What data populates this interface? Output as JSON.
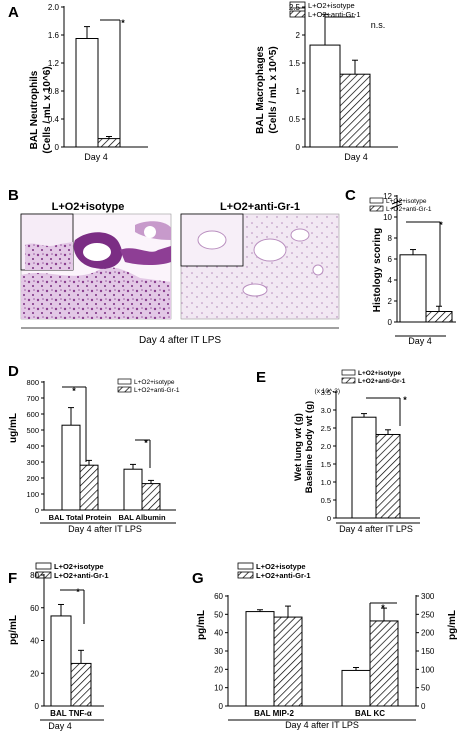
{
  "legend": {
    "isotype": "L+O2+isotype",
    "antigr1": "L+O2+anti-Gr-1"
  },
  "panelA": {
    "letter": "A",
    "left": {
      "ylabel1": "BAL Neutrophils",
      "ylabel2": "(Cells / mL x 10^6)",
      "xlabel": "Day 4",
      "sig": "*"
    },
    "right": {
      "ylabel1": "BAL Macrophages",
      "ylabel2": "(Cells / mL x 10^5)",
      "xlabel": "Day 4",
      "sig": "n.s."
    }
  },
  "panelB": {
    "letter": "B",
    "img1_label": "L+O2+isotype",
    "img2_label": "L+O2+anti-Gr-1",
    "caption": "Day 4 after IT LPS"
  },
  "panelC": {
    "letter": "C",
    "ylabel": "Histology scoring",
    "xlabel": "Day 4",
    "sig": "*"
  },
  "panelD": {
    "letter": "D",
    "ylabel": "ug/mL",
    "caption": "Day 4 after IT LPS",
    "sig": "*"
  },
  "panelE": {
    "letter": "E",
    "ylabel1": "Wet lung wt (g)",
    "ylabel2": "Baseline body wt (g)",
    "scale": "(x 10^-3)",
    "caption": "Day 4 after IT LPS",
    "sig": "*"
  },
  "panelF": {
    "letter": "F",
    "ylabel": "pg/mL",
    "xlabel": "Day 4",
    "sig": "*"
  },
  "panelG": {
    "letter": "G",
    "ylabel_left": "pg/mL",
    "ylabel_right": "pg/mL",
    "caption": "Day 4 after IT LPS",
    "sig": "*"
  },
  "chart_data": [
    {
      "panel": "A-left",
      "type": "bar",
      "categories": [
        "Day 4"
      ],
      "series": [
        {
          "name": "L+O2+isotype",
          "values": [
            1.55
          ],
          "error": [
            0.17
          ]
        },
        {
          "name": "L+O2+anti-Gr-1",
          "values": [
            0.12
          ],
          "error": [
            0.03
          ]
        }
      ],
      "ylim": [
        0,
        2.0
      ],
      "yticks": [
        "0",
        "0.4",
        "0.8",
        "1.2",
        "1.6",
        "2.0"
      ]
    },
    {
      "panel": "A-right",
      "type": "bar",
      "categories": [
        "Day 4"
      ],
      "series": [
        {
          "name": "L+O2+isotype",
          "values": [
            1.82
          ],
          "error": [
            0.55
          ]
        },
        {
          "name": "L+O2+anti-Gr-1",
          "values": [
            1.3
          ],
          "error": [
            0.25
          ]
        }
      ],
      "ylim": [
        0,
        2.5
      ],
      "yticks": [
        "0",
        "0.5",
        "1",
        "1.5",
        "2",
        "2.5"
      ]
    },
    {
      "panel": "C",
      "type": "bar",
      "categories": [
        "Day 4"
      ],
      "series": [
        {
          "name": "L+O2+isotype",
          "values": [
            6.4
          ],
          "error": [
            0.5
          ]
        },
        {
          "name": "L+O2+anti-Gr-1",
          "values": [
            1.0
          ],
          "error": [
            0.5
          ]
        }
      ],
      "ylim": [
        0,
        12
      ],
      "yticks": [
        "0",
        "2",
        "4",
        "6",
        "8",
        "10",
        "12"
      ],
      "axis_break": true
    },
    {
      "panel": "D",
      "type": "bar",
      "categories": [
        "BAL Total Protein",
        "BAL Albumin"
      ],
      "series": [
        {
          "name": "L+O2+isotype",
          "values": [
            530,
            255
          ],
          "error": [
            110,
            30
          ]
        },
        {
          "name": "L+O2+anti-Gr-1",
          "values": [
            280,
            165
          ],
          "error": [
            30,
            20
          ]
        }
      ],
      "ylim": [
        0,
        800
      ],
      "yticks": [
        "0",
        "100",
        "200",
        "300",
        "400",
        "500",
        "600",
        "700",
        "800"
      ]
    },
    {
      "panel": "E",
      "type": "bar",
      "categories": [
        "Day 4 after IT LPS"
      ],
      "series": [
        {
          "name": "L+O2+isotype",
          "values": [
            2.8
          ],
          "error": [
            0.1
          ]
        },
        {
          "name": "L+O2+anti-Gr-1",
          "values": [
            2.32
          ],
          "error": [
            0.13
          ]
        }
      ],
      "ylim": [
        0,
        3.5
      ],
      "yticks": [
        "0",
        "0.5",
        "1.0",
        "1.5",
        "2.0",
        "2.5",
        "3.0",
        "3.5"
      ]
    },
    {
      "panel": "F",
      "type": "bar",
      "categories": [
        "BAL TNF-α"
      ],
      "series": [
        {
          "name": "L+O2+isotype",
          "values": [
            55
          ],
          "error": [
            7
          ]
        },
        {
          "name": "L+O2+anti-Gr-1",
          "values": [
            26
          ],
          "error": [
            8
          ]
        }
      ],
      "ylim": [
        0,
        80
      ],
      "yticks": [
        "0",
        "20",
        "40",
        "60",
        "80"
      ]
    },
    {
      "panel": "G",
      "type": "bar",
      "categories": [
        "BAL MIP-2",
        "BAL KC"
      ],
      "series": [
        {
          "name": "L+O2+isotype",
          "values": [
            51.5,
            97
          ],
          "error": [
            1,
            8
          ],
          "axis": [
            "left",
            "right"
          ]
        },
        {
          "name": "L+O2+anti-Gr-1",
          "values": [
            48.5,
            232
          ],
          "error": [
            6,
            35
          ],
          "axis": [
            "left",
            "right"
          ]
        }
      ],
      "ylim_left": [
        0,
        60
      ],
      "yticks_left": [
        "0",
        "10",
        "20",
        "30",
        "40",
        "50",
        "60"
      ],
      "ylim_right": [
        0,
        300
      ],
      "yticks_right": [
        "0",
        "50",
        "100",
        "150",
        "200",
        "250",
        "300"
      ]
    }
  ]
}
